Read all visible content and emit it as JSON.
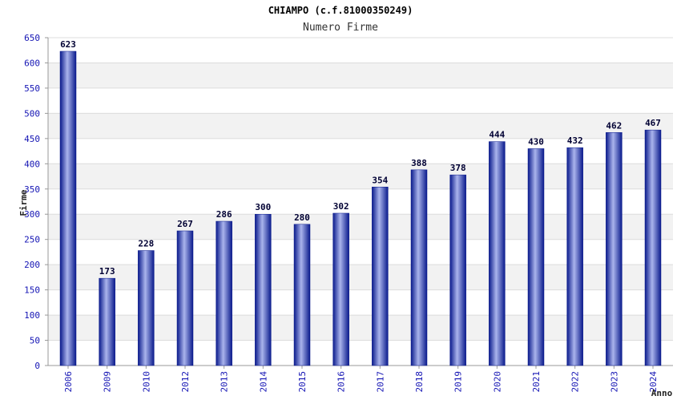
{
  "chart_data": {
    "type": "bar",
    "title": "CHIAMPO (c.f.81000350249)",
    "subtitle": "Numero Firme",
    "xlabel": "Anno",
    "ylabel": "Firme",
    "categories": [
      "2006",
      "2009",
      "2010",
      "2012",
      "2013",
      "2014",
      "2015",
      "2016",
      "2017",
      "2018",
      "2019",
      "2020",
      "2021",
      "2022",
      "2023",
      "2024"
    ],
    "values": [
      623,
      173,
      228,
      267,
      286,
      300,
      280,
      302,
      354,
      388,
      378,
      444,
      430,
      432,
      462,
      467
    ],
    "ylim": [
      0,
      650
    ],
    "yticks": [
      0,
      50,
      100,
      150,
      200,
      250,
      300,
      350,
      400,
      450,
      500,
      550,
      600,
      650
    ],
    "grid": true,
    "colors": {
      "bar_dark": "#0a1a8c",
      "bar_light": "#aab4ec",
      "axis_text": "#1414b4",
      "label_text": "#000033",
      "band": "#f2f2f2",
      "grid": "#dcdcdc"
    }
  }
}
